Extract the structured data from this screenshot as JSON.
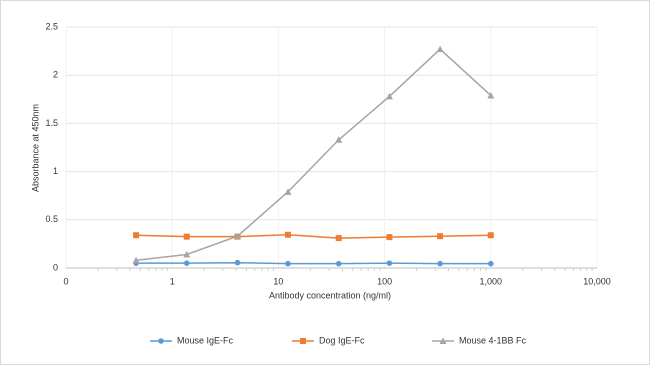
{
  "chart_data": {
    "type": "line",
    "x_label": "Antibody concentration (ng/ml)",
    "y_label": "Absorbance at 450nm",
    "x": [
      0.457,
      1.37,
      4.12,
      12.3,
      37,
      111,
      333,
      1000
    ],
    "series": [
      {
        "name": "Mouse IgE-Fc",
        "color": "#5b9bd5",
        "marker": "circle",
        "values": [
          0.05,
          0.05,
          0.055,
          0.045,
          0.045,
          0.05,
          0.045,
          0.045
        ]
      },
      {
        "name": "Dog IgE-Fc",
        "color": "#ed7d31",
        "marker": "square",
        "values": [
          0.34,
          0.325,
          0.325,
          0.345,
          0.31,
          0.32,
          0.33,
          0.34
        ]
      },
      {
        "name": "Mouse 4-1BB Fc",
        "color": "#a5a5a5",
        "marker": "triangle",
        "values": [
          0.08,
          0.14,
          0.33,
          0.79,
          1.33,
          1.78,
          2.27,
          1.79
        ]
      }
    ],
    "xscale": "log",
    "xlim": [
      0.1,
      10000
    ],
    "xticks": [
      {
        "value": 0.1,
        "label": "0"
      },
      1,
      10,
      100,
      {
        "value": 1000,
        "label": "1,000"
      },
      {
        "value": 10000,
        "label": "10,000"
      }
    ],
    "ylim": [
      0,
      2.5
    ],
    "yticks": [
      0,
      0.5,
      1,
      1.5,
      2,
      2.5
    ],
    "grid": true,
    "legend": "bottom"
  }
}
